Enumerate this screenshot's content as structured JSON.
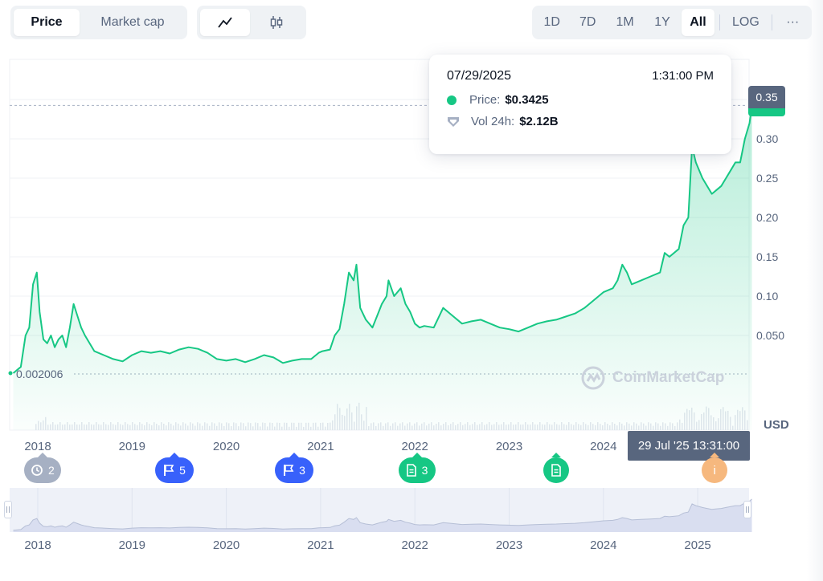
{
  "toolbar": {
    "metric_tabs": [
      {
        "label": "Price",
        "active": true
      },
      {
        "label": "Market cap",
        "active": false
      }
    ],
    "chart_type_icons": [
      "line-chart-icon",
      "candlestick-icon"
    ],
    "ranges": [
      {
        "label": "1D",
        "active": false
      },
      {
        "label": "7D",
        "active": false
      },
      {
        "label": "1M",
        "active": false
      },
      {
        "label": "1Y",
        "active": false
      },
      {
        "label": "All",
        "active": true
      }
    ],
    "log_label": "LOG",
    "more_label": "···"
  },
  "tooltip": {
    "date": "07/29/2025",
    "time": "1:31:00 PM",
    "price_label": "Price:",
    "price_value": "$0.3425",
    "vol_label": "Vol 24h:",
    "vol_value": "$2.12B"
  },
  "price_tag": "0.35",
  "low_label": "0.002006",
  "crosshair_date": "29 Jul '25 13:31:00",
  "currency_label": "USD",
  "watermark": "CoinMarketCap",
  "events": [
    {
      "icon": "history-icon",
      "count": "2",
      "color": "gray",
      "year": 2018.05
    },
    {
      "icon": "flag-icon",
      "count": "5",
      "color": "blue",
      "year": 2019.45
    },
    {
      "icon": "flag-icon",
      "count": "3",
      "color": "blue",
      "year": 2020.72
    },
    {
      "icon": "document-icon",
      "count": "3",
      "color": "green",
      "year": 2022.02
    },
    {
      "icon": "document-icon",
      "count": "",
      "color": "green",
      "year": 2023.5
    },
    {
      "icon": "info-icon",
      "count": "i",
      "color": "orange",
      "year": 2025.18
    }
  ],
  "colors": {
    "line": "#16c784",
    "event_blue": "#3861fb",
    "muted": "#58667e"
  },
  "chart_data": {
    "type": "area",
    "title": "",
    "xlabel": "",
    "ylabel": "USD",
    "x_ticks": [
      "2018",
      "2019",
      "2020",
      "2021",
      "2022",
      "2023",
      "2024"
    ],
    "nav_ticks": [
      "2018",
      "2019",
      "2020",
      "2021",
      "2022",
      "2023",
      "2024",
      "2025"
    ],
    "y_ticks": [
      0.05,
      0.1,
      0.15,
      0.2,
      0.25,
      0.3,
      0.35
    ],
    "y_tick_labels": [
      "0.050",
      "0.10",
      "0.15",
      "0.20",
      "0.25",
      "0.30",
      "0.35"
    ],
    "ylim": [
      0,
      0.35
    ],
    "grid": true,
    "series": [
      {
        "values": [
          [
            2017.74,
            0.002
          ],
          [
            2017.82,
            0.01
          ],
          [
            2017.87,
            0.05
          ],
          [
            2017.91,
            0.06
          ],
          [
            2017.95,
            0.115
          ],
          [
            2017.99,
            0.13
          ],
          [
            2018.02,
            0.08
          ],
          [
            2018.06,
            0.045
          ],
          [
            2018.1,
            0.04
          ],
          [
            2018.14,
            0.05
          ],
          [
            2018.18,
            0.035
          ],
          [
            2018.22,
            0.045
          ],
          [
            2018.26,
            0.05
          ],
          [
            2018.3,
            0.035
          ],
          [
            2018.34,
            0.06
          ],
          [
            2018.38,
            0.09
          ],
          [
            2018.42,
            0.075
          ],
          [
            2018.46,
            0.06
          ],
          [
            2018.5,
            0.05
          ],
          [
            2018.55,
            0.04
          ],
          [
            2018.6,
            0.03
          ],
          [
            2018.7,
            0.025
          ],
          [
            2018.8,
            0.02
          ],
          [
            2018.9,
            0.017
          ],
          [
            2019.0,
            0.025
          ],
          [
            2019.1,
            0.03
          ],
          [
            2019.2,
            0.028
          ],
          [
            2019.3,
            0.03
          ],
          [
            2019.4,
            0.027
          ],
          [
            2019.5,
            0.032
          ],
          [
            2019.6,
            0.035
          ],
          [
            2019.7,
            0.033
          ],
          [
            2019.8,
            0.028
          ],
          [
            2019.9,
            0.02
          ],
          [
            2020.0,
            0.018
          ],
          [
            2020.1,
            0.02
          ],
          [
            2020.2,
            0.016
          ],
          [
            2020.3,
            0.02
          ],
          [
            2020.4,
            0.025
          ],
          [
            2020.5,
            0.022
          ],
          [
            2020.6,
            0.015
          ],
          [
            2020.7,
            0.018
          ],
          [
            2020.8,
            0.02
          ],
          [
            2020.9,
            0.02
          ],
          [
            2020.98,
            0.028
          ],
          [
            2021.02,
            0.03
          ],
          [
            2021.1,
            0.032
          ],
          [
            2021.15,
            0.05
          ],
          [
            2021.2,
            0.058
          ],
          [
            2021.25,
            0.09
          ],
          [
            2021.3,
            0.13
          ],
          [
            2021.35,
            0.12
          ],
          [
            2021.38,
            0.14
          ],
          [
            2021.42,
            0.085
          ],
          [
            2021.48,
            0.07
          ],
          [
            2021.55,
            0.06
          ],
          [
            2021.6,
            0.075
          ],
          [
            2021.65,
            0.09
          ],
          [
            2021.7,
            0.1
          ],
          [
            2021.72,
            0.12
          ],
          [
            2021.78,
            0.1
          ],
          [
            2021.85,
            0.11
          ],
          [
            2021.9,
            0.09
          ],
          [
            2021.95,
            0.08
          ],
          [
            2022.0,
            0.065
          ],
          [
            2022.05,
            0.06
          ],
          [
            2022.1,
            0.062
          ],
          [
            2022.2,
            0.06
          ],
          [
            2022.3,
            0.085
          ],
          [
            2022.4,
            0.075
          ],
          [
            2022.5,
            0.065
          ],
          [
            2022.6,
            0.068
          ],
          [
            2022.7,
            0.07
          ],
          [
            2022.8,
            0.065
          ],
          [
            2022.9,
            0.06
          ],
          [
            2023.0,
            0.058
          ],
          [
            2023.1,
            0.055
          ],
          [
            2023.2,
            0.06
          ],
          [
            2023.3,
            0.065
          ],
          [
            2023.4,
            0.068
          ],
          [
            2023.5,
            0.07
          ],
          [
            2023.6,
            0.074
          ],
          [
            2023.7,
            0.078
          ],
          [
            2023.8,
            0.085
          ],
          [
            2023.9,
            0.095
          ],
          [
            2024.0,
            0.105
          ],
          [
            2024.1,
            0.11
          ],
          [
            2024.15,
            0.12
          ],
          [
            2024.2,
            0.14
          ],
          [
            2024.25,
            0.13
          ],
          [
            2024.3,
            0.115
          ],
          [
            2024.4,
            0.12
          ],
          [
            2024.5,
            0.125
          ],
          [
            2024.6,
            0.13
          ],
          [
            2024.65,
            0.155
          ],
          [
            2024.7,
            0.15
          ],
          [
            2024.8,
            0.16
          ],
          [
            2024.85,
            0.19
          ],
          [
            2024.9,
            0.2
          ],
          [
            2024.94,
            0.29
          ],
          [
            2024.98,
            0.27
          ],
          [
            2025.05,
            0.25
          ],
          [
            2025.1,
            0.24
          ],
          [
            2025.15,
            0.23
          ],
          [
            2025.2,
            0.235
          ],
          [
            2025.25,
            0.24
          ],
          [
            2025.3,
            0.25
          ],
          [
            2025.35,
            0.26
          ],
          [
            2025.4,
            0.27
          ],
          [
            2025.45,
            0.27
          ],
          [
            2025.5,
            0.3
          ],
          [
            2025.55,
            0.32
          ],
          [
            2025.575,
            0.3425
          ]
        ]
      }
    ]
  }
}
